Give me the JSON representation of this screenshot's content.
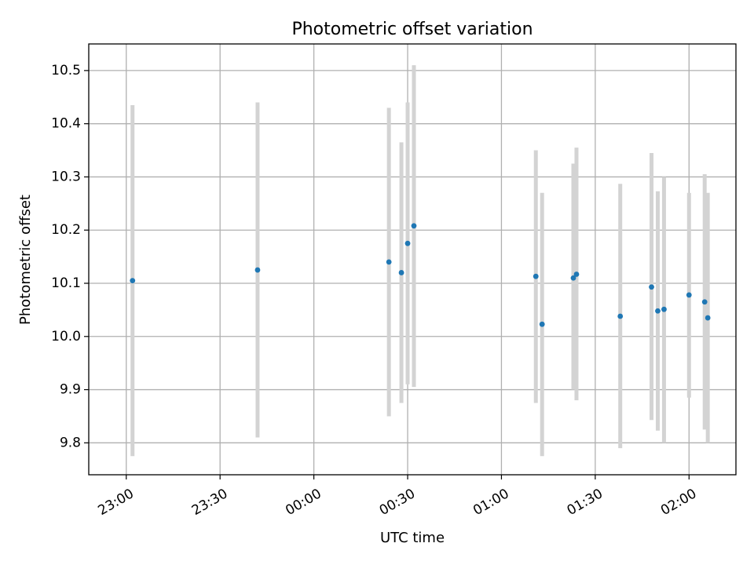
{
  "chart_data": {
    "type": "scatter",
    "title": "Photometric offset variation",
    "xlabel": "UTC time",
    "ylabel": "Photometric offset",
    "xlim": [
      "22:48",
      "02:15"
    ],
    "ylim": [
      9.74,
      10.55
    ],
    "x_ticks": [
      "23:00",
      "23:30",
      "00:00",
      "00:30",
      "01:00",
      "01:30",
      "02:00"
    ],
    "y_ticks": [
      "9.8",
      "9.9",
      "10.0",
      "10.1",
      "10.2",
      "10.3",
      "10.4",
      "10.5"
    ],
    "grid": true,
    "legend": "none",
    "colors": {
      "marker": "#1f77b4",
      "errorbar": "#d3d3d3",
      "grid": "#b0b0b0"
    },
    "points": [
      {
        "x": "23:02",
        "y": 10.105,
        "ymin": 9.775,
        "ymax": 10.435
      },
      {
        "x": "23:42",
        "y": 10.125,
        "ymin": 9.81,
        "ymax": 10.44
      },
      {
        "x": "00:24",
        "y": 10.14,
        "ymin": 9.85,
        "ymax": 10.43
      },
      {
        "x": "00:28",
        "y": 10.12,
        "ymin": 9.875,
        "ymax": 10.365
      },
      {
        "x": "00:30",
        "y": 10.175,
        "ymin": 9.91,
        "ymax": 10.44
      },
      {
        "x": "00:32",
        "y": 10.208,
        "ymin": 9.905,
        "ymax": 10.51
      },
      {
        "x": "01:11",
        "y": 10.113,
        "ymin": 9.875,
        "ymax": 10.35
      },
      {
        "x": "01:13",
        "y": 10.023,
        "ymin": 9.775,
        "ymax": 10.27
      },
      {
        "x": "01:23",
        "y": 10.11,
        "ymin": 9.9,
        "ymax": 10.325
      },
      {
        "x": "01:24",
        "y": 10.117,
        "ymin": 9.88,
        "ymax": 10.355
      },
      {
        "x": "01:38",
        "y": 10.038,
        "ymin": 9.79,
        "ymax": 10.287
      },
      {
        "x": "01:48",
        "y": 10.093,
        "ymin": 9.843,
        "ymax": 10.345
      },
      {
        "x": "01:50",
        "y": 10.048,
        "ymin": 9.823,
        "ymax": 10.273
      },
      {
        "x": "01:52",
        "y": 10.051,
        "ymin": 9.8,
        "ymax": 10.3
      },
      {
        "x": "02:00",
        "y": 10.078,
        "ymin": 9.885,
        "ymax": 10.27
      },
      {
        "x": "02:05",
        "y": 10.065,
        "ymin": 9.825,
        "ymax": 10.305
      },
      {
        "x": "02:06",
        "y": 10.035,
        "ymin": 9.8,
        "ymax": 10.27
      }
    ]
  }
}
